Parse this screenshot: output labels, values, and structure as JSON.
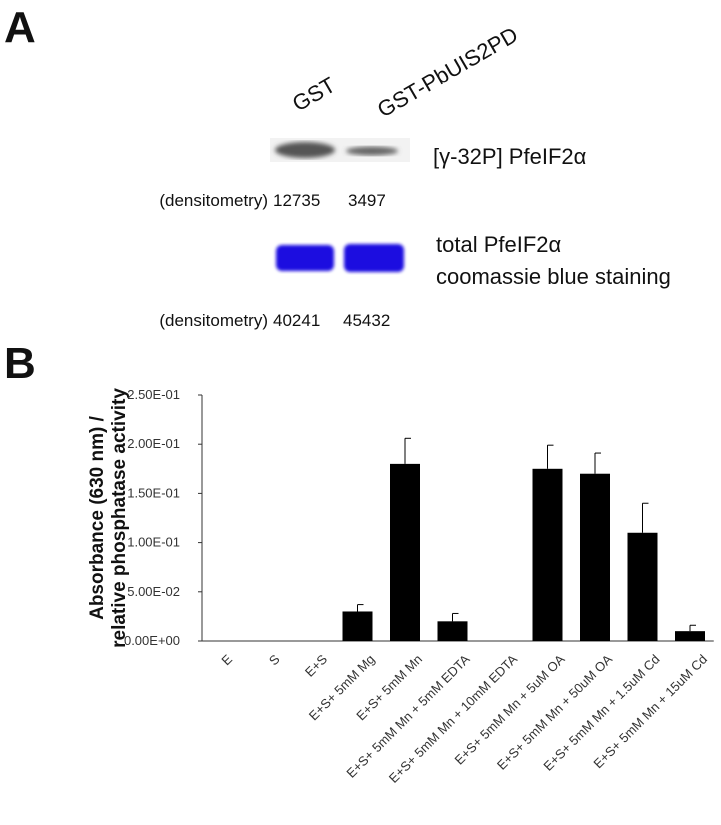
{
  "panel_labels": [
    "A",
    "B"
  ],
  "panel_a": {
    "lanes": [
      "GST",
      "GST-PbUIS2PD"
    ],
    "rows": [
      {
        "label": "[γ-32P] PfeIF2α",
        "densitometry_label": "(densitometry)",
        "densitometry": [
          12735,
          3497
        ]
      },
      {
        "label": [
          "total PfeIF2α",
          "coomassie blue staining"
        ],
        "densitometry_label": "(densitometry)",
        "densitometry": [
          40241,
          45432
        ]
      }
    ]
  },
  "chart_data": {
    "type": "bar",
    "ylabel": [
      "Absorbance (630 nm) /",
      "relative phosphatase activity"
    ],
    "categories": [
      "E",
      "S",
      "E+S",
      "E+S+ 5mM Mg",
      "E+S+ 5mM Mn",
      "E+S+ 5mM Mn + 5mM EDTA",
      "E+S+ 5mM Mn + 10mM EDTA",
      "E+S+ 5mM Mn + 5uM OA",
      "E+S+ 5mM Mn + 50uM OA",
      "E+S+ 5mM Mn + 1.5uM Cd",
      "E+S+ 5mM Mn + 15uM Cd"
    ],
    "values": [
      0,
      0,
      0,
      0.03,
      0.18,
      0.02,
      0,
      0.175,
      0.17,
      0.11,
      0.01
    ],
    "errors": [
      0,
      0,
      0,
      0.007,
      0.026,
      0.008,
      0,
      0.024,
      0.021,
      0.03,
      0.006
    ],
    "color": "#000000",
    "ylim": [
      0,
      0.25
    ],
    "yticks": [
      {
        "value": 0,
        "label": "0.00E+00"
      },
      {
        "value": 0.05,
        "label": "5.00E-02"
      },
      {
        "value": 0.1,
        "label": "1.00E-01"
      },
      {
        "value": 0.15,
        "label": "1.50E-01"
      },
      {
        "value": 0.2,
        "label": "2.00E-01"
      },
      {
        "value": 0.25,
        "label": "2.50E-01"
      }
    ]
  }
}
